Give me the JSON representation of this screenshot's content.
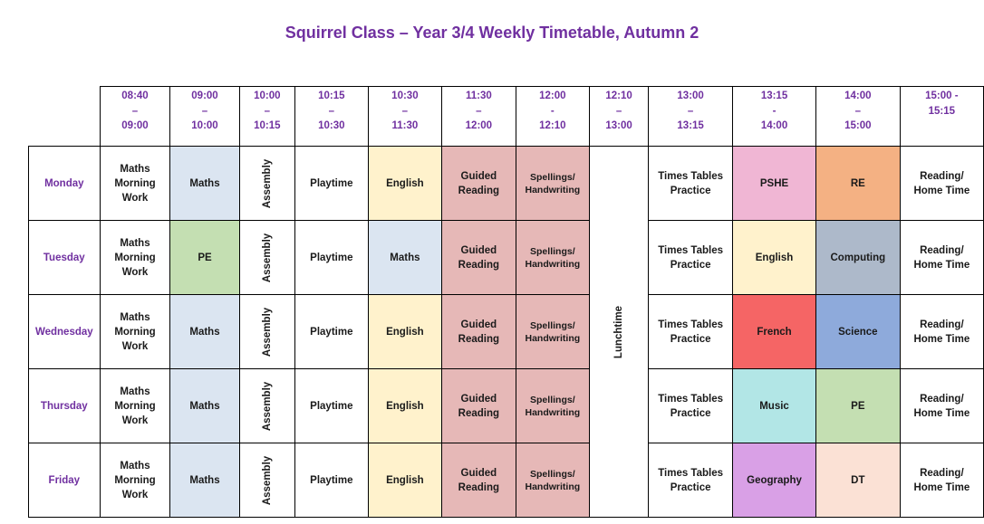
{
  "title": "Squirrel Class – Year 3/4 Weekly Timetable, Autumn 2",
  "times": [
    "08:40\n–\n09:00",
    "09:00\n–\n10:00",
    "10:00\n–\n10:15",
    "10:15\n–\n10:30",
    "10:30\n–\n11:30",
    "11:30\n–\n12:00",
    "12:00\n-\n12:10",
    "12:10\n–\n13:00",
    "13:00\n–\n13:15",
    "13:15\n-\n14:00",
    "14:00\n–\n15:00",
    "15:00 -\n15:15"
  ],
  "days": [
    "Monday",
    "Tuesday",
    "Wednesday",
    "Thursday",
    "Friday"
  ],
  "common": {
    "morning_work": "Maths\nMorning\nWork",
    "assembly": "Assembly",
    "playtime": "Playtime",
    "guided_reading": "Guided\nReading",
    "spellings": "Spellings/\nHandwriting",
    "lunchtime": "Lunchtime",
    "times_tables": "Times Tables\nPractice",
    "reading": "Reading/\nHome Time"
  },
  "lessons": {
    "monday": {
      "p1": "Maths",
      "p2": "English",
      "p3": "PSHE",
      "p4": "RE"
    },
    "tuesday": {
      "p1": "PE",
      "p2": "Maths",
      "p3": "English",
      "p4": "Computing"
    },
    "wednesday": {
      "p1": "Maths",
      "p2": "English",
      "p3": "French",
      "p4": "Science"
    },
    "thursday": {
      "p1": "Maths",
      "p2": "English",
      "p3": "Music",
      "p4": "PE"
    },
    "friday": {
      "p1": "Maths",
      "p2": "English",
      "p3": "Geography",
      "p4": "DT"
    }
  },
  "colors": {
    "title": "#7030a0",
    "maths": "#dbe5f1",
    "english": "#fff2cc",
    "guided_reading": "#e6b8b7",
    "pe": "#c4dfb2",
    "pshe": "#f0b6d4",
    "re": "#f4b183",
    "computing": "#adb9ca",
    "french": "#f56565",
    "science": "#8eaadb",
    "music": "#b2e6e6",
    "geography": "#d9a0e6",
    "dt": "#fbe1d5"
  }
}
